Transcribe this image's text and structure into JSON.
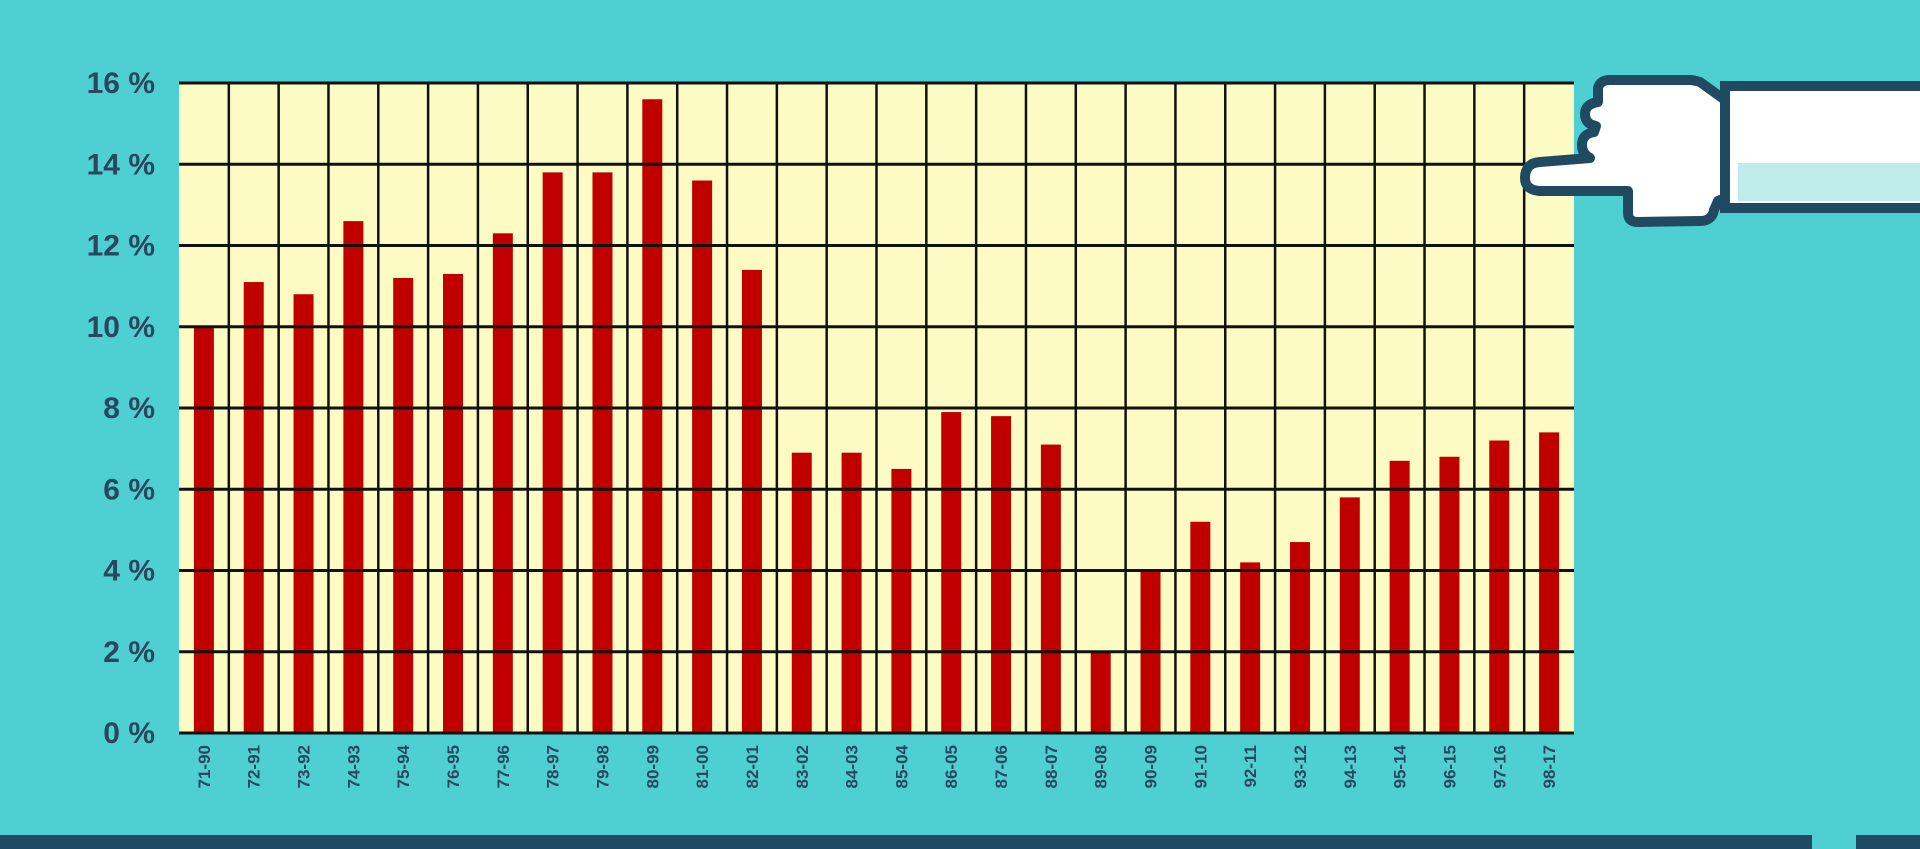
{
  "colors": {
    "background": "#4ecfd1",
    "plot_background": "#fdfbc4",
    "grid": "#111111",
    "bar": "#c00000",
    "text": "#2b4660",
    "footer_bar": "#1f4a62",
    "hand_outline": "#1f4a62",
    "hand_fill": "#ffffff",
    "sleeve_shade": "#bfeceb"
  },
  "icons": {
    "pointer": "pointing-hand-icon"
  },
  "chart_data": {
    "type": "bar",
    "categories": [
      "71-90",
      "72-91",
      "73-92",
      "74-93",
      "75-94",
      "76-95",
      "77-96",
      "78-97",
      "79-98",
      "80-99",
      "81-00",
      "82-01",
      "83-02",
      "84-03",
      "85-04",
      "86-05",
      "87-06",
      "88-07",
      "89-08",
      "90-09",
      "91-10",
      "92-11",
      "93-12",
      "94-13",
      "95-14",
      "96-15",
      "97-16",
      "98-17"
    ],
    "values": [
      10.0,
      11.1,
      10.8,
      12.6,
      11.2,
      11.3,
      12.3,
      13.8,
      13.8,
      15.6,
      13.6,
      11.4,
      6.9,
      6.9,
      6.5,
      7.9,
      7.8,
      7.1,
      2.0,
      4.0,
      5.2,
      4.2,
      4.7,
      5.8,
      6.7,
      6.8,
      7.2,
      7.4
    ],
    "y_ticks": [
      "0 %",
      "2 %",
      "4 %",
      "6 %",
      "8 %",
      "10 %",
      "12 %",
      "14 %",
      "16 %"
    ],
    "ylim": [
      0,
      16
    ],
    "grid": true,
    "title": "",
    "xlabel": "",
    "ylabel": ""
  }
}
